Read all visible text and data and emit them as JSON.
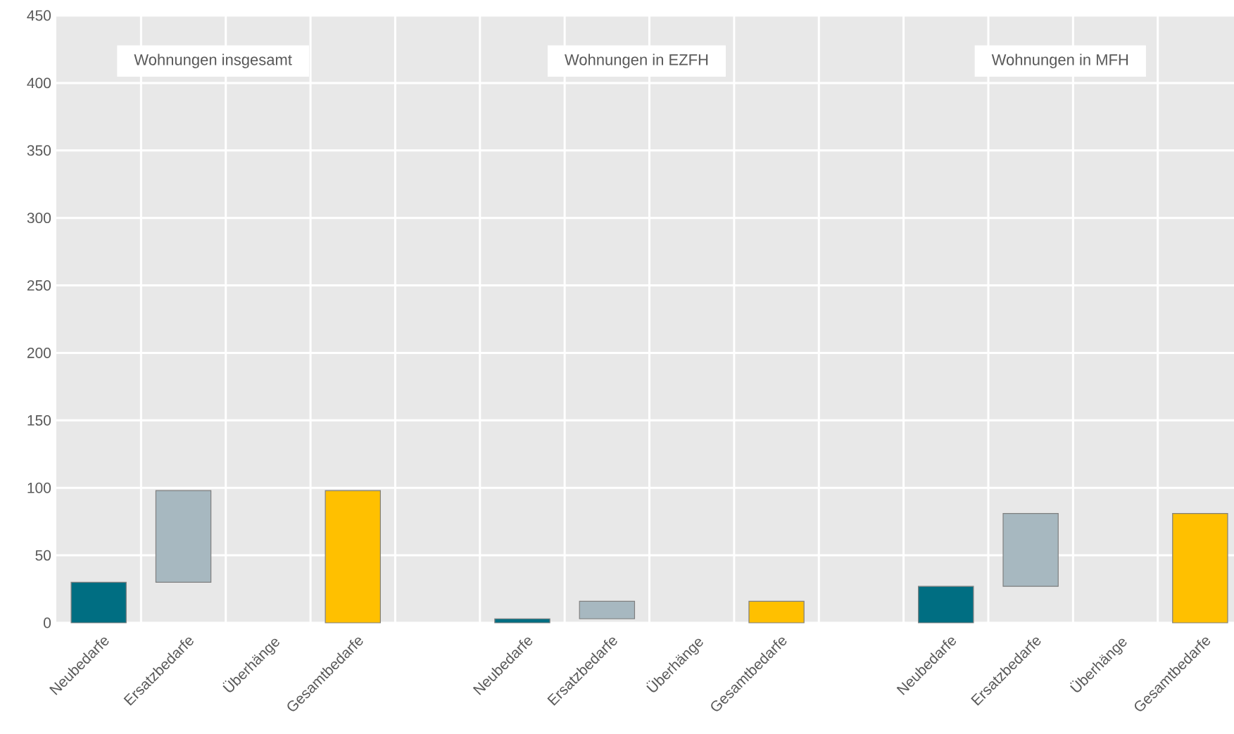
{
  "chart_data": {
    "type": "bar",
    "categories": [
      "Neubedarfe",
      "Ersatzbedarfe",
      "Überhänge",
      "Gesamtbedarfe",
      null,
      "Neubedarfe",
      "Ersatzbedarfe",
      "Überhänge",
      "Gesamtbedarfe",
      null,
      "Neubedarfe",
      "Ersatzbedarfe",
      "Überhänge",
      "Gesamtbedarfe"
    ],
    "values": [
      30,
      68,
      null,
      98,
      null,
      3,
      13,
      null,
      16,
      null,
      27,
      54,
      null,
      81
    ],
    "base": [
      0,
      30,
      null,
      0,
      null,
      0,
      3,
      null,
      0,
      null,
      0,
      27,
      null,
      0
    ],
    "colors": [
      "#006e82",
      "#a7b8c0",
      null,
      "#ffc000",
      null,
      "#006e82",
      "#a7b8c0",
      null,
      "#ffc000",
      null,
      "#006e82",
      "#a7b8c0",
      null,
      "#ffc000"
    ],
    "ylim": [
      0,
      450
    ],
    "yticks": [
      0,
      50,
      100,
      150,
      200,
      250,
      300,
      350,
      400,
      450
    ],
    "grid": true,
    "annotations": [
      "Wohnungen insgesamt",
      "Wohnungen in EZFH",
      "Wohnungen in MFH"
    ]
  }
}
